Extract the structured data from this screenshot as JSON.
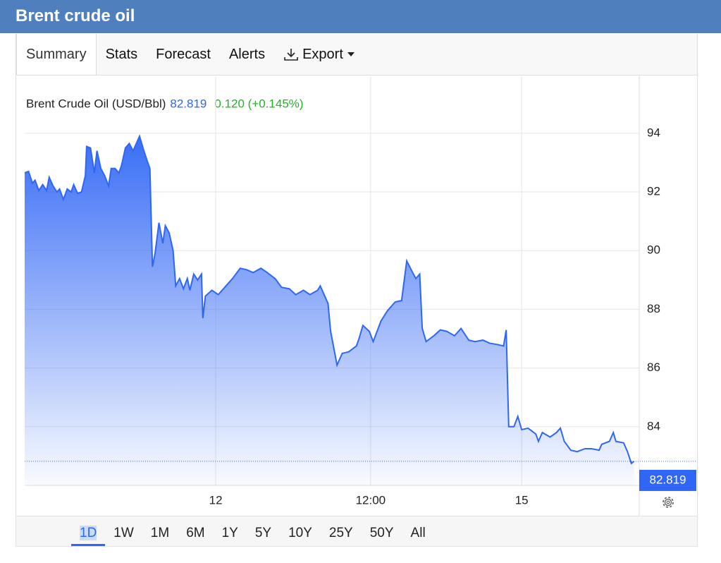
{
  "header": {
    "title": "Brent crude oil"
  },
  "tabs": [
    "Summary",
    "Stats",
    "Forecast",
    "Alerts",
    "Export"
  ],
  "chart_data": {
    "type": "area",
    "title": "Brent Crude Oil (USD/Bbl)",
    "last_value": 82.819,
    "change": "0.120 (+0.145%)",
    "x": [
      -14.8,
      -14.5,
      -14.2,
      -14.0,
      -13.7,
      -13.4,
      -13.1,
      -12.9,
      -12.6,
      -12.3,
      -12.1,
      -11.8,
      -11.5,
      -11.2,
      -11.0,
      -10.7,
      -10.4,
      -10.1,
      -10.0,
      -9.7,
      -9.4,
      -9.2,
      -8.9,
      -8.6,
      -8.3,
      -8.1,
      -7.8,
      -7.5,
      -7.3,
      -7.0,
      -6.7,
      -6.4,
      -6.2,
      -5.9,
      -5.6,
      -5.3,
      -5.1,
      -4.9,
      -4.7,
      -4.4,
      -4.1,
      -3.9,
      -3.6,
      -3.3,
      -3.1,
      -2.8,
      -2.5,
      -2.2,
      -2.0,
      -1.7,
      -1.4,
      -1.1,
      -1.0,
      -0.8,
      -0.3,
      0.2,
      0.8,
      1.3,
      1.9,
      2.4,
      2.9,
      3.5,
      4.0,
      4.6,
      5.1,
      5.7,
      6.2,
      6.8,
      7.3,
      7.9,
      8.1,
      8.7,
      8.9,
      9.4,
      9.8,
      10.3,
      10.9,
      11.1,
      11.4,
      11.9,
      12.2,
      12.8,
      13.3,
      13.9,
      14.4,
      14.8,
      15.2,
      15.5,
      15.8,
      16.0,
      16.3,
      16.9,
      17.4,
      17.9,
      18.5,
      19.0,
      19.6,
      20.1,
      20.7,
      21.2,
      21.8,
      22.3,
      22.5,
      22.7,
      23.1,
      23.4,
      23.7,
      24.2,
      24.8,
      25.0,
      25.3,
      25.9,
      26.4,
      26.7,
      27.0,
      27.5,
      28.0,
      28.6,
      29.1,
      29.7,
      29.9,
      30.5,
      30.8,
      31.0,
      31.6,
      31.9,
      32.2,
      32.4
    ],
    "series": [
      {
        "color": "#2f66f5",
        "values": [
          92.65,
          92.7,
          92.3,
          92.4,
          92.05,
          92.25,
          92.05,
          92.5,
          92.2,
          92.0,
          92.1,
          91.75,
          92.1,
          92.0,
          92.25,
          91.95,
          92.0,
          92.55,
          93.55,
          93.5,
          92.65,
          93.4,
          92.8,
          92.55,
          92.2,
          92.8,
          92.8,
          92.65,
          92.9,
          93.5,
          93.65,
          93.4,
          93.6,
          93.9,
          93.45,
          93.05,
          92.8,
          89.45,
          89.9,
          90.95,
          90.25,
          90.85,
          90.6,
          90.0,
          88.8,
          89.05,
          88.7,
          89.05,
          88.65,
          89.2,
          89.0,
          89.2,
          87.7,
          88.45,
          88.65,
          88.5,
          88.8,
          89.05,
          89.4,
          89.35,
          89.25,
          89.4,
          89.25,
          89.05,
          88.75,
          88.7,
          88.5,
          88.65,
          88.5,
          88.65,
          88.8,
          88.2,
          87.25,
          86.1,
          86.5,
          86.55,
          86.75,
          87.0,
          87.45,
          87.25,
          86.9,
          87.6,
          87.95,
          88.25,
          88.3,
          89.65,
          89.3,
          89.05,
          89.2,
          87.35,
          86.9,
          87.1,
          87.3,
          87.25,
          87.1,
          87.35,
          86.95,
          86.9,
          86.95,
          86.85,
          86.8,
          86.75,
          87.3,
          84.0,
          84.0,
          84.35,
          83.9,
          83.95,
          83.75,
          83.5,
          83.8,
          83.65,
          83.8,
          83.95,
          83.5,
          83.2,
          83.15,
          83.25,
          83.25,
          83.2,
          83.4,
          83.5,
          83.8,
          83.5,
          83.45,
          83.15,
          82.75,
          82.819
        ]
      }
    ],
    "xlim": [
      -14.8,
      32.7
    ],
    "xticks": [
      {
        "value": 0,
        "label": "12"
      },
      {
        "value": 12,
        "label": "12:00"
      },
      {
        "value": 23.7,
        "label": "15"
      }
    ],
    "ylim": [
      82,
      95.8
    ],
    "yticks": [
      84,
      86,
      88,
      90,
      92,
      94
    ],
    "grid": true
  },
  "ranges": [
    "1D",
    "1W",
    "1M",
    "6M",
    "1Y",
    "5Y",
    "10Y",
    "25Y",
    "50Y",
    "All"
  ]
}
